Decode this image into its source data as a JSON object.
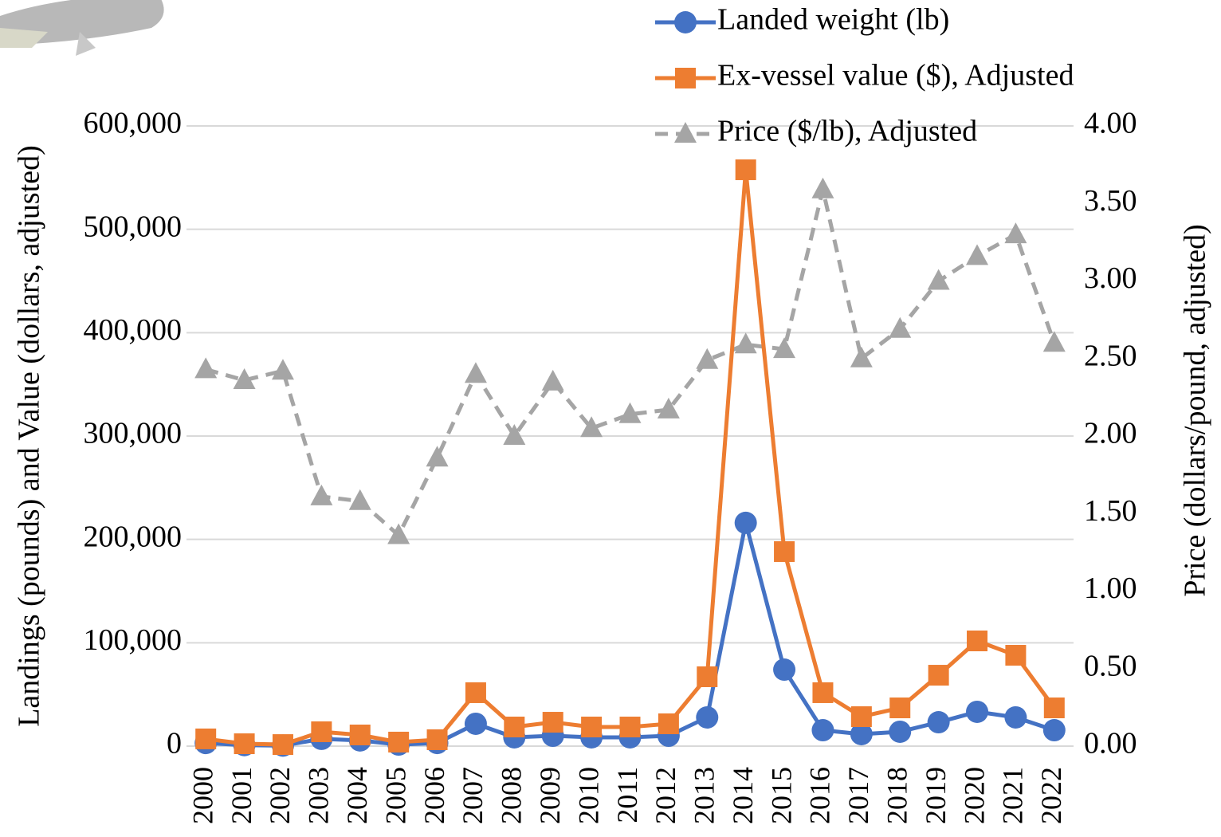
{
  "chart_data": {
    "type": "line",
    "categories": [
      "2000",
      "2001",
      "2002",
      "2003",
      "2004",
      "2005",
      "2006",
      "2007",
      "2008",
      "2009",
      "2010",
      "2011",
      "2012",
      "2013",
      "2014",
      "2015",
      "2016",
      "2017",
      "2018",
      "2019",
      "2020",
      "2021",
      "2022"
    ],
    "series": [
      {
        "name": "Landed weight (lb)",
        "color": "#4472c4",
        "marker": "circle",
        "dashed": false,
        "axis": "y",
        "values": [
          3000,
          1000,
          500,
          7000,
          5500,
          1500,
          3000,
          21600,
          8500,
          10000,
          8500,
          8500,
          10000,
          27800,
          216000,
          74000,
          15400,
          11600,
          13900,
          23100,
          33200,
          27800,
          15400
        ]
      },
      {
        "name": "Ex-vessel value ($), Adjusted",
        "color": "#ed7d31",
        "marker": "square",
        "dashed": false,
        "axis": "y",
        "values": [
          7000,
          2300,
          1500,
          13900,
          10800,
          3900,
          6200,
          51700,
          18500,
          23100,
          18500,
          18500,
          21600,
          67100,
          557600,
          188200,
          51700,
          28500,
          37000,
          68600,
          101800,
          87900,
          37000
        ]
      },
      {
        "name": "Price ($/lb), Adjusted",
        "color": "#a5a5a5",
        "marker": "triangle",
        "dashed": true,
        "axis": "y2",
        "values": [
          2.43,
          2.36,
          2.42,
          1.61,
          1.58,
          1.36,
          1.86,
          2.4,
          2.0,
          2.35,
          2.05,
          2.14,
          2.17,
          2.49,
          2.59,
          2.56,
          3.59,
          2.5,
          2.69,
          3.0,
          3.16,
          3.3,
          2.6
        ]
      }
    ],
    "ylabel": "Landings (pounds) and Value (dollars, adjusted)",
    "y2label": "Price (dollars/pound, adjusted)",
    "ylim": [
      0,
      600000
    ],
    "yticks": [
      0,
      {
        "value": 100000,
        "label": "100,000"
      },
      {
        "value": 200000,
        "label": "200,000"
      },
      {
        "value": 300000,
        "label": "300,000"
      },
      {
        "value": 400000,
        "label": "400,000"
      },
      {
        "value": 500000,
        "label": "500,000"
      },
      {
        "value": 600000,
        "label": "600,000"
      }
    ],
    "y2lim": [
      0,
      4
    ],
    "y2ticks": [
      {
        "value": 0,
        "label": "0.00"
      },
      {
        "value": 0.5,
        "label": "0.50"
      },
      {
        "value": 1,
        "label": "1.00"
      },
      {
        "value": 1.5,
        "label": "1.50"
      },
      {
        "value": 2,
        "label": "2.00"
      },
      {
        "value": 2.5,
        "label": "2.50"
      },
      {
        "value": 3,
        "label": "3.00"
      },
      {
        "value": 3.5,
        "label": "3.50"
      },
      {
        "value": 4,
        "label": "4.00"
      }
    ],
    "grid": true,
    "legend": "top-right"
  }
}
